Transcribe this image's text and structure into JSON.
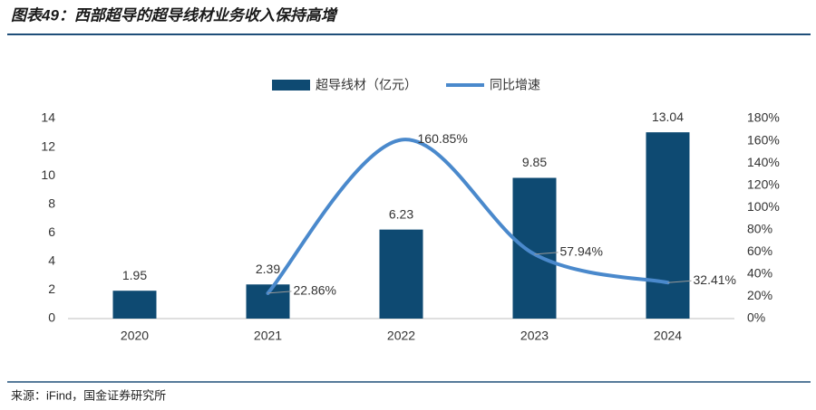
{
  "chart_data": {
    "type": "bar-line",
    "title": "图表49：西部超导的超导线材业务收入保持高增",
    "source": "来源：iFind，国金证券研究所",
    "categories": [
      "2020",
      "2021",
      "2022",
      "2023",
      "2024"
    ],
    "series": [
      {
        "name": "超导线材（亿元）",
        "type": "bar",
        "color": "#0e4a72",
        "values": [
          1.95,
          2.39,
          6.23,
          9.85,
          13.04
        ]
      },
      {
        "name": "同比增速",
        "type": "line",
        "axis": "y2",
        "smooth": true,
        "color": "#4a89cc",
        "values": [
          null,
          22.86,
          160.85,
          57.94,
          32.41
        ],
        "value_labels": [
          null,
          "22.86%",
          "160.85%",
          "57.94%",
          "32.41%"
        ]
      }
    ],
    "ylim": [
      0,
      14
    ],
    "yticks": [
      0,
      2,
      4,
      6,
      8,
      10,
      12,
      14
    ],
    "y2lim": [
      0,
      180
    ],
    "y2ticks": [
      {
        "value": 0,
        "label": "0%"
      },
      {
        "value": 20,
        "label": "20%"
      },
      {
        "value": 40,
        "label": "40%"
      },
      {
        "value": 60,
        "label": "60%"
      },
      {
        "value": 80,
        "label": "80%"
      },
      {
        "value": 100,
        "label": "100%"
      },
      {
        "value": 120,
        "label": "120%"
      },
      {
        "value": 140,
        "label": "140%"
      },
      {
        "value": 160,
        "label": "160%"
      },
      {
        "value": 180,
        "label": "180%"
      }
    ],
    "legend": "top"
  }
}
